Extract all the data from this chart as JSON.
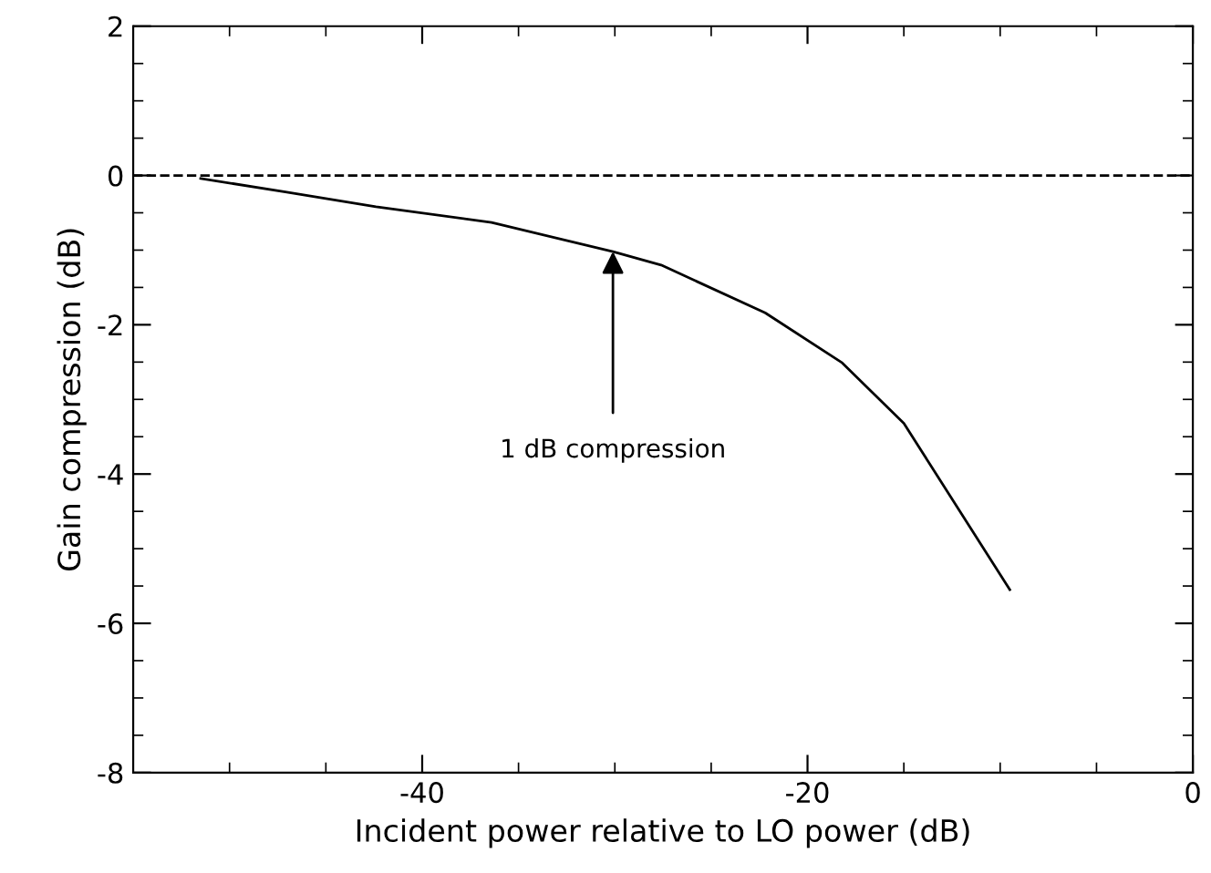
{
  "chart_data": {
    "type": "line",
    "xlabel": "Incident power relative to LO power (dB)",
    "ylabel": "Gain compression (dB)",
    "x": [
      -51.5,
      -47.1,
      -42.4,
      -36.4,
      -30.1,
      -27.6,
      -22.2,
      -18.2,
      -15.0,
      -9.5
    ],
    "series": [
      {
        "color": "#000000",
        "values": [
          -0.04,
          -0.22,
          -0.42,
          -0.63,
          -1.02,
          -1.2,
          -1.84,
          -2.51,
          -3.32,
          -5.55
        ]
      }
    ],
    "xlim": [
      -55,
      0
    ],
    "ylim": [
      -8,
      2
    ],
    "xticks": [
      -40,
      -20,
      0
    ],
    "yticks": [
      -8,
      -6,
      -4,
      -2,
      0,
      2
    ],
    "ref_lines": [
      {
        "axis": "y",
        "value": 0,
        "color": "#000000",
        "line_style": "dashed"
      }
    ],
    "annotations": [
      {
        "text": "1 dB compression",
        "x": -30.1,
        "y": -1.02
      }
    ],
    "grid": false,
    "legend": false,
    "marker": "none",
    "line_style": "solid"
  }
}
